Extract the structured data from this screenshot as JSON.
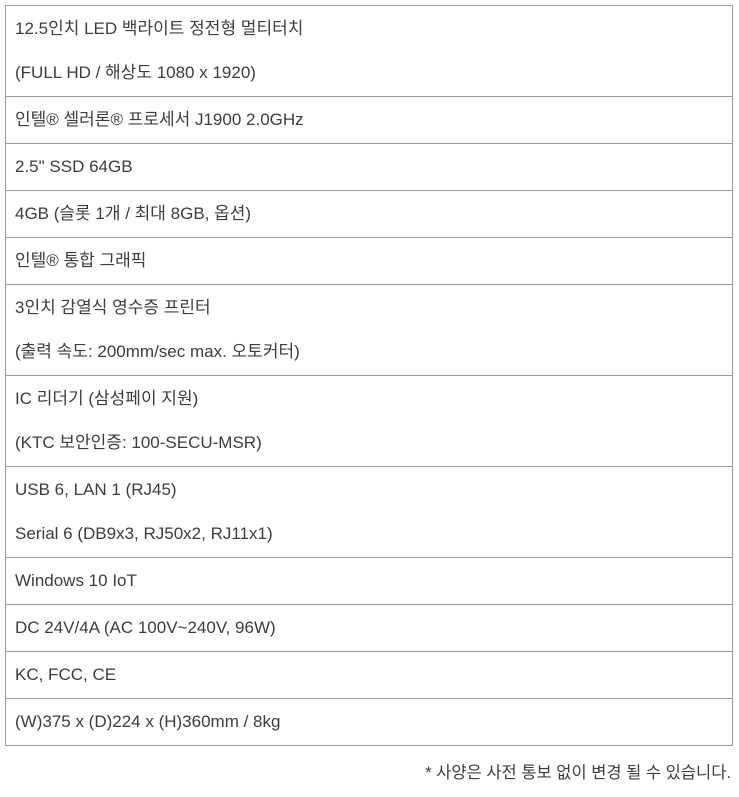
{
  "page": {
    "background": "#ffffff",
    "text_color": "#3d3d3d",
    "border_color": "#9b9b9b"
  },
  "table": {
    "rows": [
      {
        "lines": [
          "12.5인치 LED 백라이트 정전형 멀티터치",
          "(FULL HD / 해상도 1080 x 1920)"
        ]
      },
      {
        "lines": [
          "인텔® 셀러론® 프로세서 J1900 2.0GHz"
        ]
      },
      {
        "lines": [
          "2.5\" SSD 64GB"
        ]
      },
      {
        "lines": [
          "4GB (슬롯 1개 / 최대 8GB, 옵션)"
        ]
      },
      {
        "lines": [
          "인텔® 통합 그래픽"
        ]
      },
      {
        "lines": [
          "3인치 감열식 영수증 프린터",
          "(출력 속도: 200mm/sec max. 오토커터)"
        ]
      },
      {
        "lines": [
          "IC 리더기 (삼성페이 지원)",
          "(KTC 보안인증: 100-SECU-MSR)"
        ]
      },
      {
        "lines": [
          "USB 6, LAN 1 (RJ45)",
          "Serial 6 (DB9x3, RJ50x2, RJ11x1)"
        ]
      },
      {
        "lines": [
          "Windows 10 IoT"
        ]
      },
      {
        "lines": [
          "DC 24V/4A (AC 100V~240V, 96W)"
        ]
      },
      {
        "lines": [
          "KC, FCC, CE"
        ]
      },
      {
        "lines": [
          "(W)375 x (D)224 x (H)360mm / 8kg"
        ]
      }
    ]
  },
  "footnote": "* 사양은 사전 통보 없이 변경 될 수 있습니다."
}
